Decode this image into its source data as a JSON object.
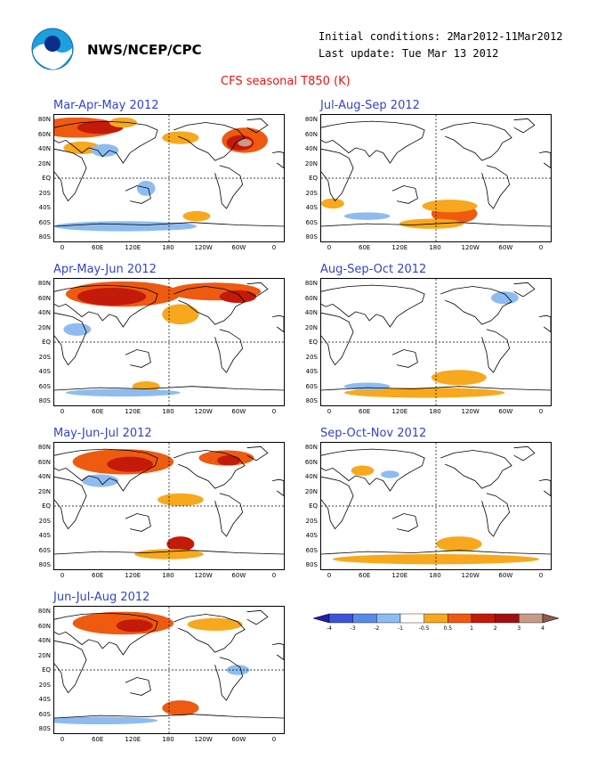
{
  "header": {
    "org": "NWS/NCEP/CPC",
    "initial_conditions": "Initial conditions: 2Mar2012-11Mar2012",
    "last_update": "Last update: Tue Mar 13 2012",
    "title": "CFS seasonal T850 (K)"
  },
  "panels": [
    {
      "title": "Mar-Apr-May 2012"
    },
    {
      "title": "Jul-Aug-Sep 2012"
    },
    {
      "title": "Apr-May-Jun 2012"
    },
    {
      "title": "Aug-Sep-Oct 2012"
    },
    {
      "title": "May-Jun-Jul 2012"
    },
    {
      "title": "Sep-Oct-Nov 2012"
    },
    {
      "title": "Jun-Jul-Aug 2012"
    }
  ],
  "lat_labels": [
    "80N",
    "60N",
    "40N",
    "20N",
    "EQ",
    "20S",
    "40S",
    "60S",
    "80S"
  ],
  "lon_labels": [
    "0",
    "60E",
    "120E",
    "180",
    "120W",
    "60W",
    "0"
  ],
  "colorbar": {
    "labels": [
      "-4",
      "-3",
      "-2",
      "-1",
      "-0.5",
      "0.5",
      "1",
      "2",
      "3",
      "4"
    ],
    "colors": [
      "#1f1fb0",
      "#3a55d8",
      "#5a8ae8",
      "#8ebcf0",
      "#ffffff",
      "#f7a81c",
      "#ee5a10",
      "#c41a0a",
      "#a01010",
      "#c89a88",
      "#8c5a50"
    ]
  }
}
